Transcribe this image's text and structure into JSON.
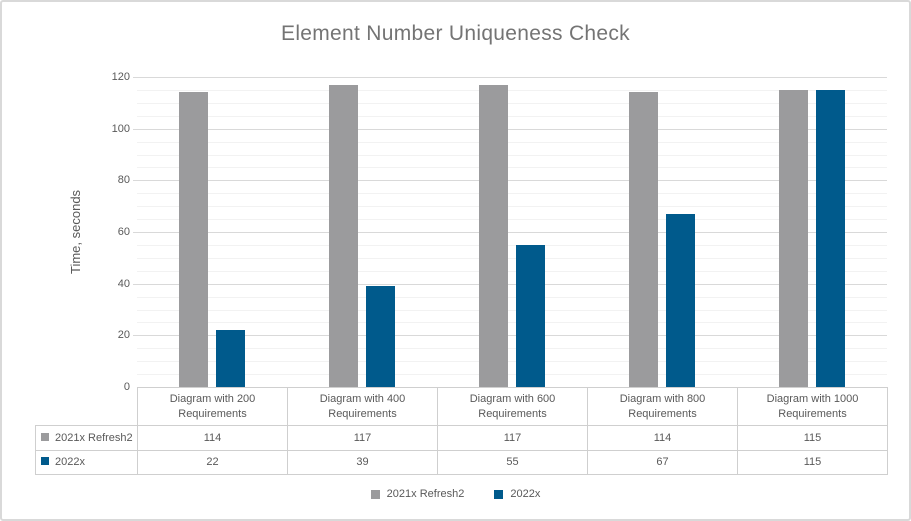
{
  "chart_data": {
    "type": "bar",
    "title": "Element Number Uniqueness Check",
    "ylabel": "Time, seconds",
    "xlabel": "",
    "ylim": [
      0,
      120
    ],
    "y_ticks": [
      0,
      20,
      40,
      60,
      80,
      100,
      120
    ],
    "y_minor_step": 5,
    "grid": "on",
    "legend_position": "bottom",
    "data_table_shown": true,
    "categories": [
      "Diagram with 200 Requirements",
      "Diagram with 400 Requirements",
      "Diagram with 600 Requirements",
      "Diagram with 800 Requirements",
      "Diagram with 1000 Requirements"
    ],
    "series": [
      {
        "name": "2021x Refresh2",
        "color": "#9b9b9d",
        "values": [
          114,
          117,
          117,
          114,
          115
        ]
      },
      {
        "name": "2022x",
        "color": "#005a8c",
        "values": [
          22,
          39,
          55,
          67,
          115
        ]
      }
    ]
  },
  "colors": {
    "grid_major": "#d9d9d9",
    "grid_minor": "#f2f2f2",
    "table_border": "#cfcfcf",
    "axis_text": "#595959",
    "title_text": "#747474",
    "frame_border": "#d9d9d9",
    "background": "#ffffff"
  }
}
